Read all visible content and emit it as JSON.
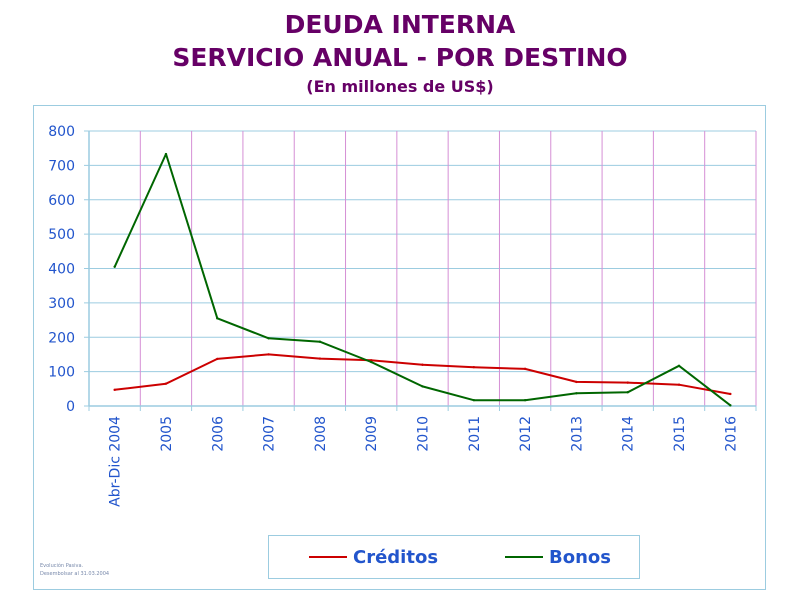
{
  "header": {
    "title_line1": "DEUDA INTERNA",
    "title_line2": "SERVICIO ANUAL - POR DESTINO",
    "subtitle": "(En millones de US$)"
  },
  "footnote": {
    "line1": "Evolución Pasiva.",
    "line2": "Desembolsar al 31.03.2004"
  },
  "colors": {
    "title": "#660066",
    "axis_text": "#2255cc",
    "horizontal_grid": "#9ccce0",
    "vertical_grid": "#d58fd5",
    "creditos": "#cc0000",
    "bonos": "#006600"
  },
  "chart_data": {
    "type": "line",
    "categories": [
      "Abr-Dic 2004",
      "2005",
      "2006",
      "2007",
      "2008",
      "2009",
      "2010",
      "2011",
      "2012",
      "2013",
      "2014",
      "2015",
      "2016"
    ],
    "series": [
      {
        "name": "Créditos",
        "values": [
          47,
          65,
          137,
          150,
          138,
          133,
          120,
          113,
          108,
          70,
          68,
          62,
          35
        ]
      },
      {
        "name": "Bonos",
        "values": [
          405,
          733,
          255,
          197,
          187,
          128,
          57,
          17,
          17,
          37,
          40,
          117,
          2
        ]
      }
    ],
    "ylim": [
      0,
      800
    ],
    "yticks": [
      0,
      100,
      200,
      300,
      400,
      500,
      600,
      700,
      800
    ],
    "grid": true,
    "legend_position": "bottom-center"
  }
}
